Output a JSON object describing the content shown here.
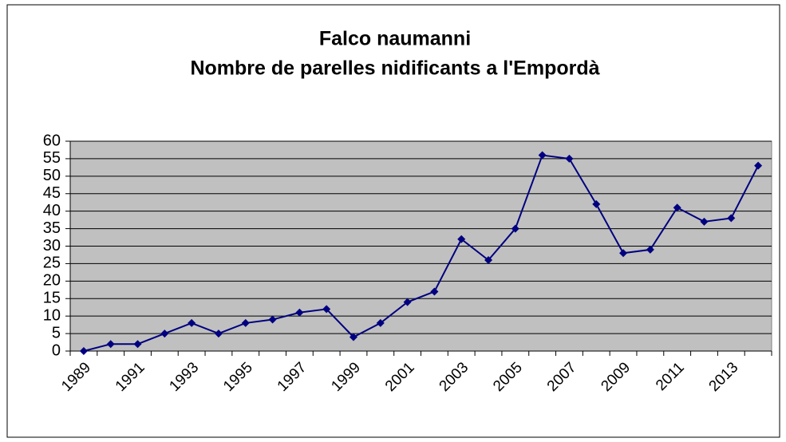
{
  "chart_data": {
    "type": "line",
    "title": "Falco naumanni",
    "subtitle": "Nombre de parelles nidificants a l'Empordà",
    "categories": [
      "1989",
      null,
      "1991",
      null,
      "1993",
      null,
      "1995",
      null,
      "1997",
      null,
      "1999",
      null,
      "2001",
      null,
      "2003",
      null,
      "2005",
      null,
      "2007",
      null,
      "2009",
      null,
      "2011",
      null,
      "2013",
      null
    ],
    "values": [
      0,
      2,
      2,
      5,
      8,
      5,
      8,
      9,
      11,
      12,
      4,
      8,
      14,
      17,
      32,
      26,
      35,
      56,
      55,
      42,
      28,
      29,
      41,
      37,
      38,
      53
    ],
    "color": "#000080",
    "ylim": [
      0,
      60
    ],
    "yticks": [
      0,
      5,
      10,
      15,
      20,
      25,
      30,
      35,
      40,
      45,
      50,
      55,
      60
    ],
    "grid": true
  }
}
